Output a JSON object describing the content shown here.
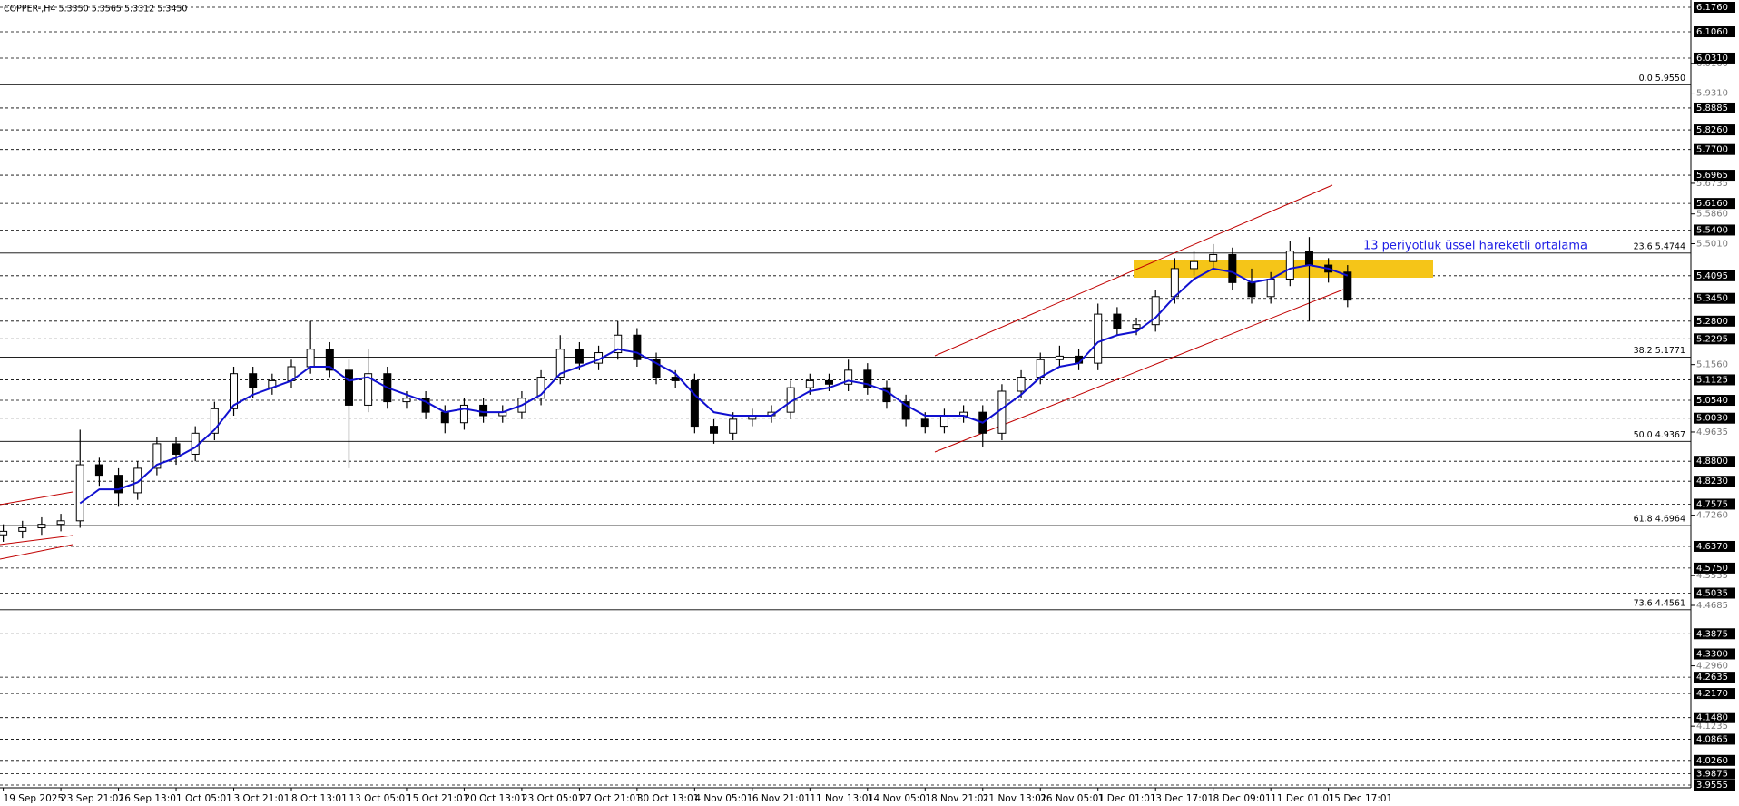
{
  "chart_data": {
    "type": "candlestick",
    "title": "COPPER-,H4  5.3350 5.3565 5.3312 5.3450",
    "annotation": "13 periyotluk üssel hareketli ortalama",
    "ylim": [
      3.9555,
      6.176
    ],
    "categories": [
      "19 Sep 2025",
      null,
      null,
      "23 Sep 21:01",
      null,
      null,
      "26 Sep 13:01",
      null,
      null,
      "1 Oct 05:01",
      null,
      null,
      "3 Oct 21:01",
      null,
      null,
      "8 Oct 13:01",
      null,
      null,
      "13 Oct 05:01",
      null,
      null,
      "15 Oct 21:01",
      null,
      null,
      "20 Oct 13:01",
      null,
      null,
      "23 Oct 05:01",
      null,
      null,
      "27 Oct 21:01",
      null,
      null,
      "30 Oct 13:01",
      null,
      null,
      "4 Nov 05:01",
      null,
      null,
      "6 Nov 21:01",
      null,
      null,
      "11 Nov 13:01",
      null,
      null,
      "14 Nov 05:01",
      null,
      null,
      "18 Nov 21:01",
      null,
      null,
      "21 Nov 13:01",
      null,
      null,
      "26 Nov 05:01",
      null,
      null,
      "1 Dec 01:01",
      null,
      null,
      "3 Dec 17:01",
      null,
      null,
      "8 Dec 09:01",
      null,
      null,
      "11 Dec 01:01",
      null,
      null,
      "15 Dec 17:01",
      null
    ],
    "open": [
      4.67,
      4.68,
      4.69,
      4.7,
      4.71,
      4.87,
      4.84,
      4.79,
      4.86,
      4.93,
      4.9,
      4.96,
      5.03,
      5.13,
      5.09,
      5.11,
      5.15,
      5.2,
      5.14,
      5.04,
      5.13,
      5.05,
      5.06,
      5.02,
      4.99,
      5.04,
      5.01,
      5.02,
      5.06,
      5.12,
      5.2,
      5.16,
      5.19,
      5.24,
      5.17,
      5.12,
      5.11,
      4.98,
      4.96,
      5.0,
      5.01,
      5.02,
      5.09,
      5.11,
      5.1,
      5.14,
      5.09,
      5.05,
      5.0,
      4.98,
      5.01,
      5.02,
      4.96,
      5.08,
      5.12,
      5.17,
      5.18,
      5.16,
      5.3,
      5.26,
      5.27,
      5.35,
      5.43,
      5.45,
      5.47,
      5.39,
      5.35,
      5.4,
      5.48,
      5.44,
      5.42
    ],
    "high": [
      4.7,
      4.71,
      4.72,
      4.73,
      4.97,
      4.89,
      4.86,
      4.88,
      4.95,
      4.95,
      4.98,
      5.05,
      5.15,
      5.15,
      5.13,
      5.17,
      5.28,
      5.22,
      5.17,
      5.2,
      5.15,
      5.08,
      5.08,
      5.04,
      5.06,
      5.06,
      5.04,
      5.08,
      5.14,
      5.24,
      5.22,
      5.21,
      5.28,
      5.26,
      5.19,
      5.14,
      5.13,
      5.0,
      5.02,
      5.03,
      5.04,
      5.11,
      5.13,
      5.13,
      5.17,
      5.16,
      5.11,
      5.07,
      5.02,
      5.03,
      5.04,
      5.04,
      5.1,
      5.14,
      5.19,
      5.21,
      5.2,
      5.33,
      5.32,
      5.29,
      5.37,
      5.46,
      5.48,
      5.5,
      5.49,
      5.43,
      5.42,
      5.51,
      5.52,
      5.46,
      5.44
    ],
    "low": [
      4.65,
      4.66,
      4.67,
      4.68,
      4.69,
      4.81,
      4.75,
      4.77,
      4.84,
      4.87,
      4.88,
      4.94,
      5.01,
      5.06,
      5.07,
      5.09,
      5.13,
      5.12,
      4.86,
      5.02,
      5.03,
      5.03,
      5.0,
      4.96,
      4.97,
      4.99,
      4.99,
      5.0,
      5.04,
      5.1,
      5.14,
      5.14,
      5.17,
      5.15,
      5.1,
      5.09,
      4.96,
      4.93,
      4.94,
      4.98,
      4.99,
      5.0,
      5.07,
      5.08,
      5.08,
      5.07,
      5.03,
      4.98,
      4.96,
      4.96,
      4.99,
      4.92,
      4.94,
      5.06,
      5.1,
      5.15,
      5.14,
      5.14,
      5.24,
      5.24,
      5.25,
      5.33,
      5.41,
      5.43,
      5.37,
      5.33,
      5.33,
      5.38,
      5.28,
      5.39,
      5.32
    ],
    "close": [
      4.68,
      4.69,
      4.7,
      4.71,
      4.87,
      4.84,
      4.79,
      4.86,
      4.93,
      4.9,
      4.96,
      5.03,
      5.13,
      5.09,
      5.11,
      5.15,
      5.2,
      5.14,
      5.04,
      5.13,
      5.05,
      5.06,
      5.02,
      4.99,
      5.04,
      5.01,
      5.02,
      5.06,
      5.12,
      5.2,
      5.16,
      5.19,
      5.24,
      5.17,
      5.12,
      5.11,
      4.98,
      4.96,
      5.0,
      5.01,
      5.02,
      5.09,
      5.11,
      5.1,
      5.14,
      5.09,
      5.05,
      5.0,
      4.98,
      5.01,
      5.02,
      4.96,
      5.08,
      5.12,
      5.17,
      5.18,
      5.16,
      5.3,
      5.26,
      5.27,
      5.35,
      5.43,
      5.45,
      5.47,
      5.39,
      5.35,
      5.4,
      5.48,
      5.44,
      5.42,
      5.34
    ],
    "ema": {
      "color": "#1010d0",
      "values": [
        null,
        null,
        null,
        null,
        4.76,
        4.8,
        4.8,
        4.82,
        4.87,
        4.89,
        4.92,
        4.97,
        5.04,
        5.07,
        5.09,
        5.11,
        5.15,
        5.15,
        5.11,
        5.12,
        5.09,
        5.07,
        5.05,
        5.02,
        5.03,
        5.02,
        5.02,
        5.04,
        5.07,
        5.13,
        5.15,
        5.17,
        5.2,
        5.19,
        5.16,
        5.13,
        5.07,
        5.02,
        5.01,
        5.01,
        5.01,
        5.05,
        5.08,
        5.09,
        5.11,
        5.1,
        5.08,
        5.04,
        5.01,
        5.01,
        5.01,
        4.99,
        5.03,
        5.07,
        5.12,
        5.15,
        5.16,
        5.22,
        5.24,
        5.25,
        5.29,
        5.35,
        5.4,
        5.43,
        5.42,
        5.39,
        5.4,
        5.43,
        5.44,
        5.43,
        5.41
      ]
    },
    "price_levels": [
      {
        "value": 6.176,
        "label": "6.1760"
      },
      {
        "value": 6.106,
        "label": "6.1060"
      },
      {
        "value": 6.031,
        "label": "6.0310"
      },
      5.8885,
      {
        "value": 5.826,
        "label": "5.8260"
      },
      {
        "value": 5.77,
        "label": "5.7700"
      },
      5.6965,
      {
        "value": 5.616,
        "label": "5.6160"
      },
      {
        "value": 5.54,
        "label": "5.5400"
      },
      5.4095,
      {
        "value": 5.345,
        "label": "5.3450"
      },
      {
        "value": 5.28,
        "label": "5.2800"
      },
      5.2295,
      5.1125,
      {
        "value": 5.054,
        "label": "5.0540"
      },
      {
        "value": 5.003,
        "label": "5.0030"
      },
      {
        "value": 4.88,
        "label": "4.8800"
      },
      {
        "value": 4.823,
        "label": "4.8230"
      },
      4.7575,
      {
        "value": 4.637,
        "label": "4.6370"
      },
      {
        "value": 4.575,
        "label": "4.5750"
      },
      4.5035,
      4.3875,
      {
        "value": 4.33,
        "label": "4.3300"
      },
      4.2635,
      {
        "value": 4.217,
        "label": "4.2170"
      },
      {
        "value": 4.148,
        "label": "4.1480"
      },
      4.0865,
      {
        "value": 4.026,
        "label": "4.0260"
      },
      3.9875,
      3.9555
    ],
    "yticks": [
      {
        "value": 6.016,
        "label": "6.0160"
      },
      {
        "value": 5.931,
        "label": "5.9310"
      },
      5.6735,
      {
        "value": 5.586,
        "label": "5.5860"
      },
      {
        "value": 5.501,
        "label": "5.5010"
      },
      {
        "value": 5.156,
        "label": "5.1560"
      },
      4.9635,
      {
        "value": 4.726,
        "label": "4.7260"
      },
      4.5535,
      4.4685,
      {
        "value": 4.296,
        "label": "4.2960"
      },
      4.1235
    ],
    "fib_levels": [
      {
        "value": 5.955,
        "label": "0.0 5.9550"
      },
      {
        "value": 5.4744,
        "label": "23.6 5.4744"
      },
      {
        "value": 5.1771,
        "label": "38.2 5.1771"
      },
      {
        "value": 4.9367,
        "label": "50.0 4.9367"
      },
      {
        "value": 4.6964,
        "label": "61.8 4.6964"
      },
      {
        "value": 4.4561,
        "label": "73.6 4.4561"
      }
    ]
  }
}
